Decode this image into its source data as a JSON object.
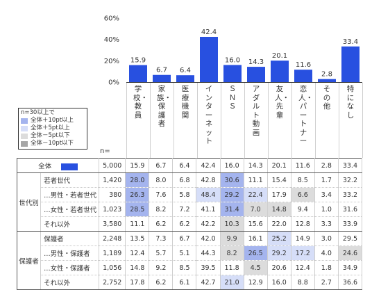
{
  "chart_data": {
    "type": "bar",
    "categories": [
      "学校・教員",
      "家族・保護者",
      "医療機関",
      "インターネット",
      "ＳＮＳ",
      "アダルト動画",
      "友人・先輩",
      "恋人・パートナー",
      "その他",
      "特になし"
    ],
    "values": [
      15.9,
      6.7,
      6.4,
      42.4,
      16.0,
      14.3,
      20.1,
      11.6,
      2.8,
      33.4
    ],
    "yticks": [
      "0%",
      "20%",
      "40%",
      "60%"
    ],
    "ylim": [
      0,
      60
    ],
    "bar_color": "#2850e0",
    "grid": false
  },
  "legend": {
    "title": "n=30以上で",
    "items": [
      {
        "label": "全体＋10pt以上",
        "color": "#a4b4ee"
      },
      {
        "label": "全体＋5pt以上",
        "color": "#d6def8"
      },
      {
        "label": "全体－5pt以下",
        "color": "#dcdcdc"
      },
      {
        "label": "全体－10pt以下",
        "color": "#a6a6a6"
      }
    ]
  },
  "n_header": "n=",
  "table": {
    "colors": {
      "p10": "#a4b4ee",
      "p5": "#d6def8",
      "m5": "#dcdcdc",
      "m10": "#a6a6a6",
      "overall_swatch": "#2850e0"
    },
    "groups": [
      {
        "label": "",
        "rows": [
          {
            "label": "全体",
            "n": "5,000",
            "values": [
              "15.9",
              "6.7",
              "6.4",
              "42.4",
              "16.0",
              "14.3",
              "20.1",
              "11.6",
              "2.8",
              "33.4"
            ],
            "hl": [
              "",
              "",
              "",
              "",
              "",
              "",
              "",
              "",
              "",
              ""
            ],
            "swatch": true
          }
        ]
      },
      {
        "label": "世代別",
        "rows": [
          {
            "label": "若者世代",
            "n": "1,420",
            "values": [
              "28.0",
              "8.0",
              "6.8",
              "42.8",
              "30.6",
              "11.1",
              "15.4",
              "8.5",
              "1.7",
              "32.2"
            ],
            "hl": [
              "p10",
              "",
              "",
              "",
              "p10",
              "",
              "",
              "",
              "",
              ""
            ]
          },
          {
            "label": "…男性・若者世代",
            "n": "380",
            "values": [
              "26.3",
              "7.6",
              "5.8",
              "48.4",
              "29.2",
              "22.4",
              "17.9",
              "6.6",
              "3.4",
              "33.2"
            ],
            "hl": [
              "p10",
              "",
              "",
              "p5",
              "p10",
              "p5",
              "",
              "m5",
              "",
              ""
            ]
          },
          {
            "label": "…女性・若者世代",
            "n": "1,023",
            "values": [
              "28.5",
              "8.2",
              "7.2",
              "41.1",
              "31.4",
              "7.0",
              "14.8",
              "9.4",
              "1.0",
              "31.6"
            ],
            "hl": [
              "p10",
              "",
              "",
              "",
              "p10",
              "m5",
              "m5",
              "",
              "",
              ""
            ]
          },
          {
            "label": "それ以外",
            "n": "3,580",
            "values": [
              "11.1",
              "6.2",
              "6.2",
              "42.2",
              "10.3",
              "15.6",
              "22.0",
              "12.8",
              "3.3",
              "33.9"
            ],
            "hl": [
              "",
              "",
              "",
              "",
              "m5",
              "",
              "",
              "",
              "",
              ""
            ]
          }
        ]
      },
      {
        "label": "保護者",
        "rows": [
          {
            "label": "保護者",
            "n": "2,248",
            "values": [
              "13.5",
              "7.3",
              "6.7",
              "42.0",
              "9.9",
              "16.1",
              "25.2",
              "14.9",
              "3.0",
              "29.5"
            ],
            "hl": [
              "",
              "",
              "",
              "",
              "m5",
              "",
              "p5",
              "",
              "",
              ""
            ]
          },
          {
            "label": "…男性・保護者",
            "n": "1,189",
            "values": [
              "12.4",
              "5.7",
              "5.1",
              "44.3",
              "8.2",
              "26.5",
              "29.2",
              "17.2",
              "4.0",
              "24.6"
            ],
            "hl": [
              "",
              "",
              "",
              "",
              "m5",
              "p10",
              "p5",
              "p5",
              "",
              "m5"
            ]
          },
          {
            "label": "…女性・保護者",
            "n": "1,056",
            "values": [
              "14.8",
              "9.2",
              "8.5",
              "39.5",
              "11.8",
              "4.5",
              "20.6",
              "12.4",
              "1.8",
              "34.9"
            ],
            "hl": [
              "",
              "",
              "",
              "",
              "",
              "m5",
              "",
              "",
              "",
              ""
            ]
          },
          {
            "label": "それ以外",
            "n": "2,752",
            "values": [
              "17.8",
              "6.2",
              "6.1",
              "42.7",
              "21.0",
              "12.9",
              "16.0",
              "8.8",
              "2.7",
              "36.6"
            ],
            "hl": [
              "",
              "",
              "",
              "",
              "p5",
              "",
              "",
              "",
              "",
              ""
            ]
          }
        ]
      }
    ]
  }
}
